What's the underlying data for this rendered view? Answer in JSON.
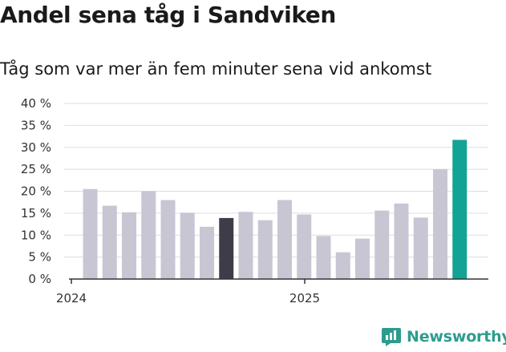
{
  "title": "Andel sena tåg i Sandviken",
  "subtitle": "Tåg som var mer än fem minuter sena vid ankomst",
  "brand": {
    "name": "Newsworthy",
    "icon": "newsworthy-logo-icon"
  },
  "colors": {
    "bar": "#c8c6d3",
    "highlight_past": "#3d3c48",
    "highlight_latest": "#12a394",
    "grid": "#dddddd",
    "axis": "#333333",
    "brand": "#2e9c8d"
  },
  "chart_data": {
    "type": "bar",
    "title": "Andel sena tåg i Sandviken",
    "subtitle": "Tåg som var mer än fem minuter sena vid ankomst",
    "ylabel": "",
    "xlabel": "",
    "ylim": [
      0,
      40
    ],
    "y_ticks": [
      "0 %",
      "5 %",
      "10 %",
      "15 %",
      "20 %",
      "25 %",
      "30 %",
      "35 %",
      "40 %"
    ],
    "x_ticks": [
      "2024",
      "2025"
    ],
    "grid": true,
    "values": [
      20.5,
      16.7,
      15.2,
      20.0,
      18.0,
      15.1,
      11.9,
      13.9,
      15.3,
      13.4,
      18.0,
      14.7,
      9.8,
      6.1,
      9.2,
      15.6,
      17.2,
      14.0,
      25.0,
      31.7
    ],
    "highlight": {
      "7": "highlight_past",
      "19": "highlight_latest"
    }
  }
}
